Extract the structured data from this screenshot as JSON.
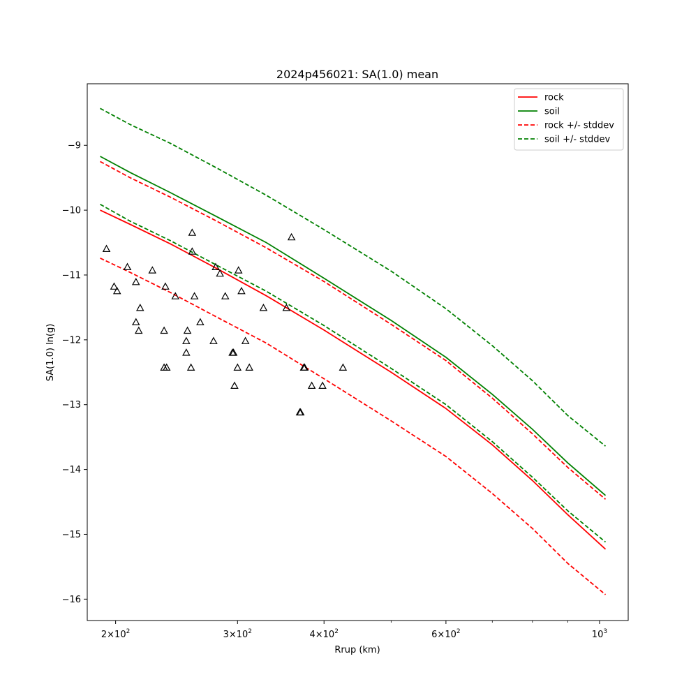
{
  "chart_data": {
    "type": "line",
    "title": "2024p456021: SA(1.0) mean",
    "xlabel": "Rrup (km)",
    "ylabel": "SA(1.0) ln(g)",
    "xscale": "log",
    "xlim": [
      182,
      1100
    ],
    "ylim": [
      -16.33,
      -8.05
    ],
    "grid": false,
    "legend_position": "top-right",
    "x_ticks": [
      {
        "value": 200,
        "base": "2",
        "exp": "2"
      },
      {
        "value": 300,
        "base": "3",
        "exp": "2"
      },
      {
        "value": 400,
        "base": "4",
        "exp": "2"
      },
      {
        "value": 600,
        "base": "6",
        "exp": "2"
      },
      {
        "value": 1000,
        "base": "10",
        "exp": "3"
      }
    ],
    "y_ticks": [
      -9,
      -10,
      -11,
      -12,
      -13,
      -14,
      -15,
      -16
    ],
    "y_tick_labels": [
      "−9",
      "−10",
      "−11",
      "−12",
      "−13",
      "−14",
      "−15",
      "−16"
    ],
    "colors": {
      "rock": "#ff0000",
      "soil": "#008000",
      "observations": "#000000"
    },
    "series": [
      {
        "name": "rock",
        "style": "solid",
        "color": "#ff0000",
        "x": [
          190,
          210,
          240,
          280,
          330,
          400,
          500,
          600,
          700,
          800,
          900,
          1020
        ],
        "y": [
          -10.0,
          -10.22,
          -10.52,
          -10.9,
          -11.32,
          -11.85,
          -12.5,
          -13.06,
          -13.62,
          -14.17,
          -14.7,
          -15.23
        ]
      },
      {
        "name": "soil",
        "style": "solid",
        "color": "#008000",
        "x": [
          190,
          210,
          240,
          280,
          330,
          400,
          500,
          600,
          700,
          800,
          900,
          1020
        ],
        "y": [
          -9.17,
          -9.42,
          -9.73,
          -10.1,
          -10.5,
          -11.05,
          -11.7,
          -12.27,
          -12.84,
          -13.38,
          -13.9,
          -14.4
        ]
      },
      {
        "name": "rock +/- stddev",
        "style": "dashed",
        "color": "#ff0000",
        "x": [
          190,
          210,
          240,
          280,
          330,
          400,
          500,
          600,
          700,
          800,
          900,
          1020
        ],
        "y": [
          -9.25,
          -9.5,
          -9.8,
          -10.17,
          -10.58,
          -11.1,
          -11.76,
          -12.32,
          -12.9,
          -13.45,
          -13.97,
          -14.46
        ]
      },
      {
        "name": "",
        "style": "dashed",
        "color": "#ff0000",
        "x": [
          190,
          210,
          240,
          280,
          330,
          400,
          500,
          600,
          700,
          800,
          900,
          1020
        ],
        "y": [
          -10.74,
          -10.96,
          -11.27,
          -11.65,
          -12.05,
          -12.6,
          -13.25,
          -13.8,
          -14.37,
          -14.91,
          -15.45,
          -15.93
        ]
      },
      {
        "name": "soil +/- stddev",
        "style": "dashed",
        "color": "#008000",
        "x": [
          190,
          210,
          240,
          280,
          330,
          400,
          500,
          600,
          700,
          800,
          900,
          1020
        ],
        "y": [
          -8.43,
          -8.68,
          -8.97,
          -9.35,
          -9.77,
          -10.3,
          -10.94,
          -11.52,
          -12.09,
          -12.63,
          -13.17,
          -13.64
        ]
      },
      {
        "name": "",
        "style": "dashed",
        "color": "#008000",
        "x": [
          190,
          210,
          240,
          280,
          330,
          400,
          500,
          600,
          700,
          800,
          900,
          1020
        ],
        "y": [
          -9.91,
          -10.17,
          -10.47,
          -10.85,
          -11.25,
          -11.78,
          -12.44,
          -13.0,
          -13.57,
          -14.12,
          -14.64,
          -15.12
        ]
      }
    ],
    "observations": {
      "marker": "triangle-open",
      "color": "#000000",
      "points": [
        [
          194,
          -10.6
        ],
        [
          199,
          -11.18
        ],
        [
          201,
          -11.25
        ],
        [
          208,
          -10.88
        ],
        [
          214,
          -11.11
        ],
        [
          214,
          -11.73
        ],
        [
          216,
          -11.86
        ],
        [
          217,
          -11.51
        ],
        [
          226,
          -10.93
        ],
        [
          235,
          -11.86
        ],
        [
          235,
          -12.43
        ],
        [
          236,
          -11.18
        ],
        [
          237,
          -12.43
        ],
        [
          244,
          -11.33
        ],
        [
          253,
          -12.2
        ],
        [
          253,
          -12.02
        ],
        [
          254,
          -11.86
        ],
        [
          257,
          -12.43
        ],
        [
          258,
          -10.35
        ],
        [
          258,
          -10.64
        ],
        [
          260,
          -11.33
        ],
        [
          265,
          -11.73
        ],
        [
          277,
          -12.02
        ],
        [
          279,
          -10.88
        ],
        [
          283,
          -10.98
        ],
        [
          288,
          -11.33
        ],
        [
          295,
          -12.2
        ],
        [
          296,
          -12.2
        ],
        [
          297,
          -12.71
        ],
        [
          300,
          -12.43
        ],
        [
          301,
          -10.93
        ],
        [
          304,
          -11.25
        ],
        [
          308,
          -12.02
        ],
        [
          312,
          -12.43
        ],
        [
          327,
          -11.51
        ],
        [
          353,
          -11.51
        ],
        [
          359,
          -10.42
        ],
        [
          374,
          -12.43
        ],
        [
          375,
          -12.43
        ],
        [
          369,
          -13.12
        ],
        [
          370,
          -13.12
        ],
        [
          384,
          -12.71
        ],
        [
          398,
          -12.71
        ],
        [
          426,
          -12.43
        ]
      ]
    }
  }
}
